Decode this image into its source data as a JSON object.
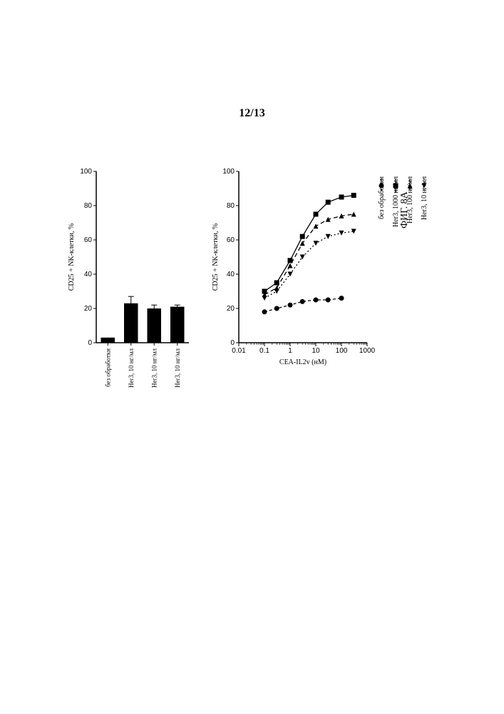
{
  "page_number": "12/13",
  "figure_label": "ФИГ. 8А",
  "bar_chart": {
    "type": "bar",
    "ylabel": "CD25 + NK-клетки, %",
    "ylim": [
      0,
      100
    ],
    "yticks": [
      0,
      20,
      40,
      60,
      80,
      100
    ],
    "categories": [
      "без обработки",
      "Her3, 10 нг/мл",
      "Her3, 10 нг/мл",
      "Her3, 10 нг/мл"
    ],
    "values": [
      3,
      23,
      20,
      21
    ],
    "errors": [
      0,
      4,
      2,
      1
    ],
    "bar_color": "#000000",
    "background_color": "#ffffff",
    "axis_color": "#000000",
    "label_fontsize": 10,
    "tick_fontsize": 10,
    "bar_width": 0.6
  },
  "line_chart": {
    "type": "line",
    "ylabel": "CD25 + NK-клетки, %",
    "xlabel": "CEA-IL2v (нМ)",
    "ylim": [
      0,
      100
    ],
    "yticks": [
      0,
      20,
      40,
      60,
      80,
      100
    ],
    "xscale": "log",
    "xlim": [
      0.01,
      1000
    ],
    "xticks": [
      0.01,
      0.1,
      1,
      10,
      100,
      1000
    ],
    "xtick_labels": [
      "0.01",
      "0.1",
      "1",
      "10",
      "100",
      "1000"
    ],
    "background_color": "#ffffff",
    "axis_color": "#000000",
    "label_fontsize": 10,
    "tick_fontsize": 10,
    "series": [
      {
        "name": "без обработки",
        "marker": "circle",
        "dash": "4,3",
        "color": "#000000",
        "x": [
          0.1,
          0.3,
          1,
          3,
          10,
          30,
          100
        ],
        "y": [
          18,
          20,
          22,
          24,
          25,
          25,
          26
        ]
      },
      {
        "name": "Her3, 1000 нг/мл",
        "marker": "square",
        "dash": "none",
        "color": "#000000",
        "x": [
          0.1,
          0.3,
          1,
          3,
          10,
          30,
          100,
          300
        ],
        "y": [
          30,
          35,
          48,
          62,
          75,
          82,
          85,
          86
        ]
      },
      {
        "name": "Her3, 100 нг/мл",
        "marker": "triangle-up",
        "dash": "6,4",
        "color": "#000000",
        "x": [
          0.1,
          0.3,
          1,
          3,
          10,
          30,
          100,
          300
        ],
        "y": [
          28,
          32,
          45,
          58,
          68,
          72,
          74,
          75
        ]
      },
      {
        "name": "Her3, 10 нг/мл",
        "marker": "triangle-down",
        "dash": "2,3",
        "color": "#000000",
        "x": [
          0.1,
          0.3,
          1,
          3,
          10,
          30,
          100,
          300
        ],
        "y": [
          26,
          30,
          40,
          50,
          58,
          62,
          64,
          65
        ]
      }
    ],
    "legend": {
      "position": "right",
      "items": [
        {
          "marker": "circle",
          "dash": "4,3",
          "label": "без обработки"
        },
        {
          "marker": "square",
          "dash": "none",
          "label": "Her3, 1000 нг/мл"
        },
        {
          "marker": "triangle-up",
          "dash": "6,4",
          "label": "Her3, 100 нг/мл"
        },
        {
          "marker": "triangle-down",
          "dash": "2,3",
          "label": "Her3, 10 нг/мл"
        }
      ]
    }
  }
}
